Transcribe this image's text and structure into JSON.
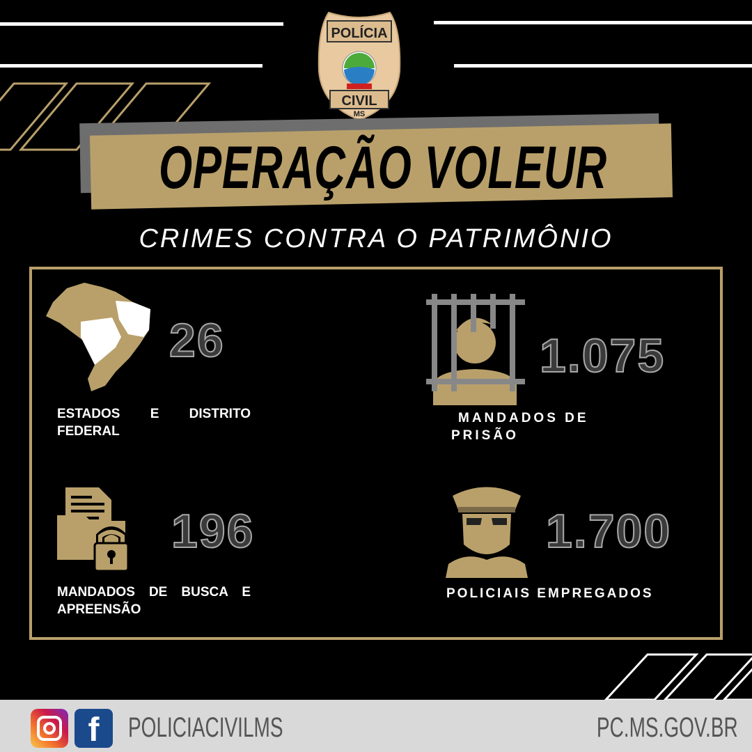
{
  "badge": {
    "top": "POLÍCIA",
    "bottom": "CIVIL",
    "region": "MS"
  },
  "title": "OPERAÇÃO VOLEUR",
  "subtitle": "CRIMES CONTRA O PATRIMÔNIO",
  "stats": [
    {
      "icon": "brazil-map-icon",
      "value": "26",
      "label": "ESTADOS E DISTRITO FEDERAL"
    },
    {
      "icon": "prisoner-icon",
      "value": "1.075",
      "label": "MANDADOS DE PRISÃO"
    },
    {
      "icon": "locked-folder-icon",
      "value": "196",
      "label": "MANDADOS DE BUSCA E APREENSÃO"
    },
    {
      "icon": "police-officer-icon",
      "value": "1.700",
      "label": "POLICIAIS EMPREGADOS"
    }
  ],
  "footer": {
    "social_handle": "POLICIACIVILMS",
    "website": "PC.MS.GOV.BR"
  },
  "colors": {
    "gold": "#b9a06a",
    "background": "#000000",
    "footer": "#d9d9d9"
  }
}
